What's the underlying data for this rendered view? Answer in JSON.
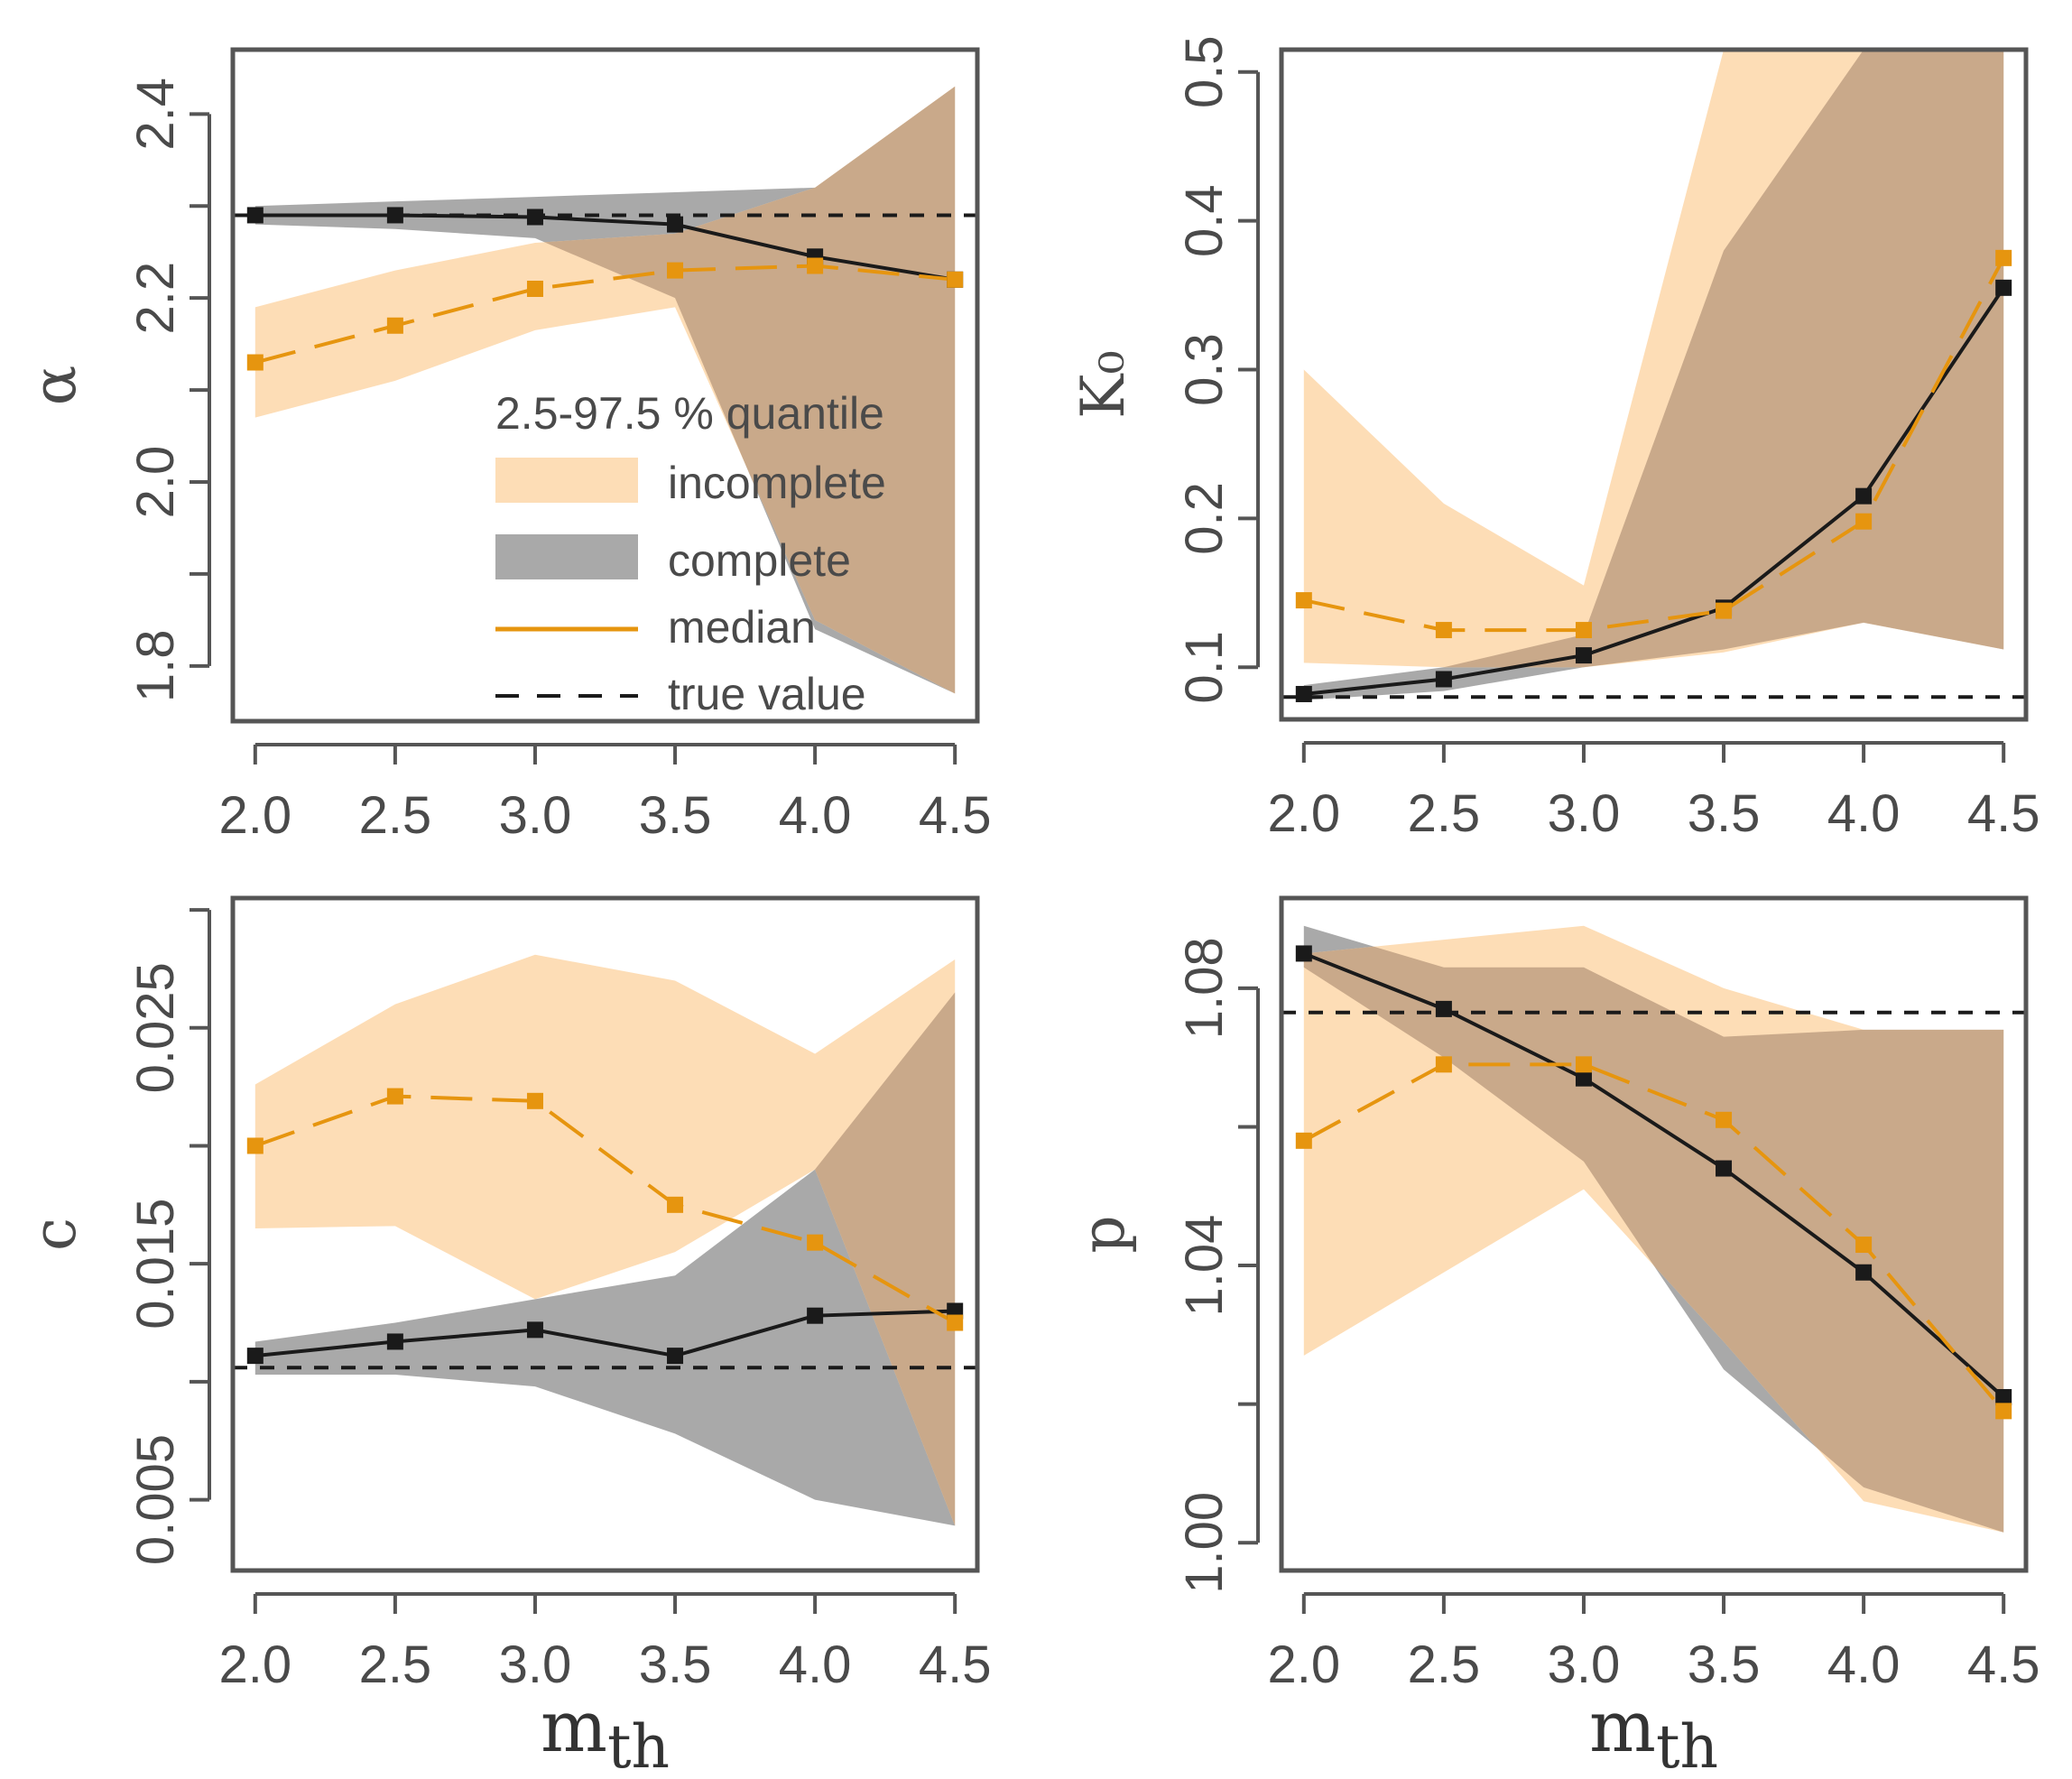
{
  "colors": {
    "incomplete_band": "#fdddb6",
    "complete_band": "#a9a9a9",
    "overlap_band": "#c9a98a",
    "median_incomplete": "#e6950f",
    "median_complete": "#1a1a1a",
    "true_value": "#1a1a1a",
    "frame": "#555555",
    "text": "#4a4a4a"
  },
  "legend": {
    "title": "2.5-97.5 % quantile",
    "incomplete": "incomplete",
    "complete": "complete",
    "median": "median",
    "true_value": "true value"
  },
  "chart_data": [
    {
      "type": "line",
      "panel": "top-left",
      "ylabel": "α",
      "xlabel": "",
      "x": [
        2.0,
        2.5,
        3.0,
        3.5,
        4.0,
        4.5
      ],
      "x_ticks": [
        "2.0",
        "2.5",
        "3.0",
        "3.5",
        "4.0",
        "4.5"
      ],
      "xlim": [
        1.92,
        4.58
      ],
      "ylim": [
        1.74,
        2.47
      ],
      "y_ticks": [
        1.8,
        1.9,
        2.0,
        2.1,
        2.2,
        2.3,
        2.4
      ],
      "y_tick_labels": [
        "1.8",
        "",
        "2.0",
        "",
        "2.2",
        "",
        "2.4"
      ],
      "true_value": 2.29,
      "legend": "inside",
      "series": [
        {
          "name": "incomplete",
          "median": [
            2.13,
            2.17,
            2.21,
            2.23,
            2.235,
            2.22
          ],
          "lower": [
            2.07,
            2.11,
            2.165,
            2.19,
            1.85,
            1.77
          ],
          "upper": [
            2.19,
            2.23,
            2.26,
            2.27,
            2.32,
            2.43
          ]
        },
        {
          "name": "complete",
          "median": [
            2.29,
            2.29,
            2.288,
            2.28,
            2.245,
            2.22
          ],
          "lower": [
            2.28,
            2.275,
            2.265,
            2.2,
            1.84,
            1.77
          ],
          "upper": [
            2.3,
            2.305,
            2.31,
            2.315,
            2.32,
            2.43
          ]
        }
      ]
    },
    {
      "type": "line",
      "panel": "top-right",
      "ylabel": "K₀",
      "xlabel": "",
      "x": [
        2.0,
        2.5,
        3.0,
        3.5,
        4.0,
        4.5
      ],
      "x_ticks": [
        "2.0",
        "2.5",
        "3.0",
        "3.5",
        "4.0",
        "4.5"
      ],
      "xlim": [
        1.92,
        4.58
      ],
      "ylim": [
        0.065,
        0.515
      ],
      "y_ticks": [
        0.1,
        0.2,
        0.3,
        0.4,
        0.5
      ],
      "y_tick_labels": [
        "0.1",
        "0.2",
        "0.3",
        "0.4",
        "0.5"
      ],
      "true_value": 0.08,
      "series": [
        {
          "name": "incomplete",
          "median": [
            0.145,
            0.125,
            0.125,
            0.138,
            0.198,
            0.375
          ],
          "lower": [
            0.103,
            0.1,
            0.1,
            0.11,
            0.13,
            0.112
          ],
          "upper": [
            0.3,
            0.21,
            0.155,
            0.515,
            0.515,
            0.515
          ]
        },
        {
          "name": "complete",
          "median": [
            0.082,
            0.092,
            0.108,
            0.14,
            0.215,
            0.355
          ],
          "lower": [
            0.078,
            0.084,
            0.1,
            0.112,
            0.13,
            0.112
          ],
          "upper": [
            0.088,
            0.1,
            0.122,
            0.38,
            0.515,
            0.515
          ]
        }
      ]
    },
    {
      "type": "line",
      "panel": "bottom-left",
      "ylabel": "c",
      "xlabel": "m_th",
      "x": [
        2.0,
        2.5,
        3.0,
        3.5,
        4.0,
        4.5
      ],
      "x_ticks": [
        "2.0",
        "2.5",
        "3.0",
        "3.5",
        "4.0",
        "4.5"
      ],
      "xlim": [
        1.92,
        4.58
      ],
      "ylim": [
        0.002,
        0.0305
      ],
      "y_ticks": [
        0.005,
        0.01,
        0.015,
        0.02,
        0.025,
        0.03
      ],
      "y_tick_labels": [
        "0.005",
        "",
        "0.015",
        "",
        "0.025",
        ""
      ],
      "true_value": 0.0106,
      "series": [
        {
          "name": "incomplete",
          "median": [
            0.02,
            0.0221,
            0.0219,
            0.0175,
            0.0159,
            0.0125
          ],
          "lower": [
            0.0165,
            0.0166,
            0.0135,
            0.0155,
            0.019,
            0.0039
          ],
          "upper": [
            0.0226,
            0.026,
            0.0281,
            0.027,
            0.0239,
            0.0279
          ]
        },
        {
          "name": "complete",
          "median": [
            0.0111,
            0.0117,
            0.0122,
            0.0111,
            0.0128,
            0.013
          ],
          "lower": [
            0.0103,
            0.0103,
            0.0098,
            0.0078,
            0.005,
            0.0039
          ],
          "upper": [
            0.0117,
            0.0125,
            0.0135,
            0.0145,
            0.019,
            0.0265
          ]
        }
      ]
    },
    {
      "type": "line",
      "panel": "bottom-right",
      "ylabel": "p",
      "xlabel": "m_th",
      "x": [
        2.0,
        2.5,
        3.0,
        3.5,
        4.0,
        4.5
      ],
      "x_ticks": [
        "2.0",
        "2.5",
        "3.0",
        "3.5",
        "4.0",
        "4.5"
      ],
      "xlim": [
        1.92,
        4.58
      ],
      "ylim": [
        0.996,
        1.093
      ],
      "y_ticks": [
        1.0,
        1.02,
        1.04,
        1.06,
        1.08
      ],
      "y_tick_labels": [
        "1.00",
        "",
        "1.04",
        "",
        "1.08"
      ],
      "true_value": 1.0765,
      "series": [
        {
          "name": "incomplete",
          "median": [
            1.058,
            1.069,
            1.069,
            1.061,
            1.043,
            1.019
          ],
          "lower": [
            1.027,
            1.039,
            1.051,
            1.029,
            1.006,
            1.0015
          ],
          "upper": [
            1.085,
            1.087,
            1.089,
            1.08,
            1.074,
            1.074
          ]
        },
        {
          "name": "complete",
          "median": [
            1.085,
            1.077,
            1.067,
            1.054,
            1.039,
            1.021
          ],
          "lower": [
            1.083,
            1.07,
            1.055,
            1.025,
            1.008,
            1.0015
          ],
          "upper": [
            1.089,
            1.083,
            1.083,
            1.073,
            1.074,
            1.074
          ]
        }
      ]
    }
  ]
}
